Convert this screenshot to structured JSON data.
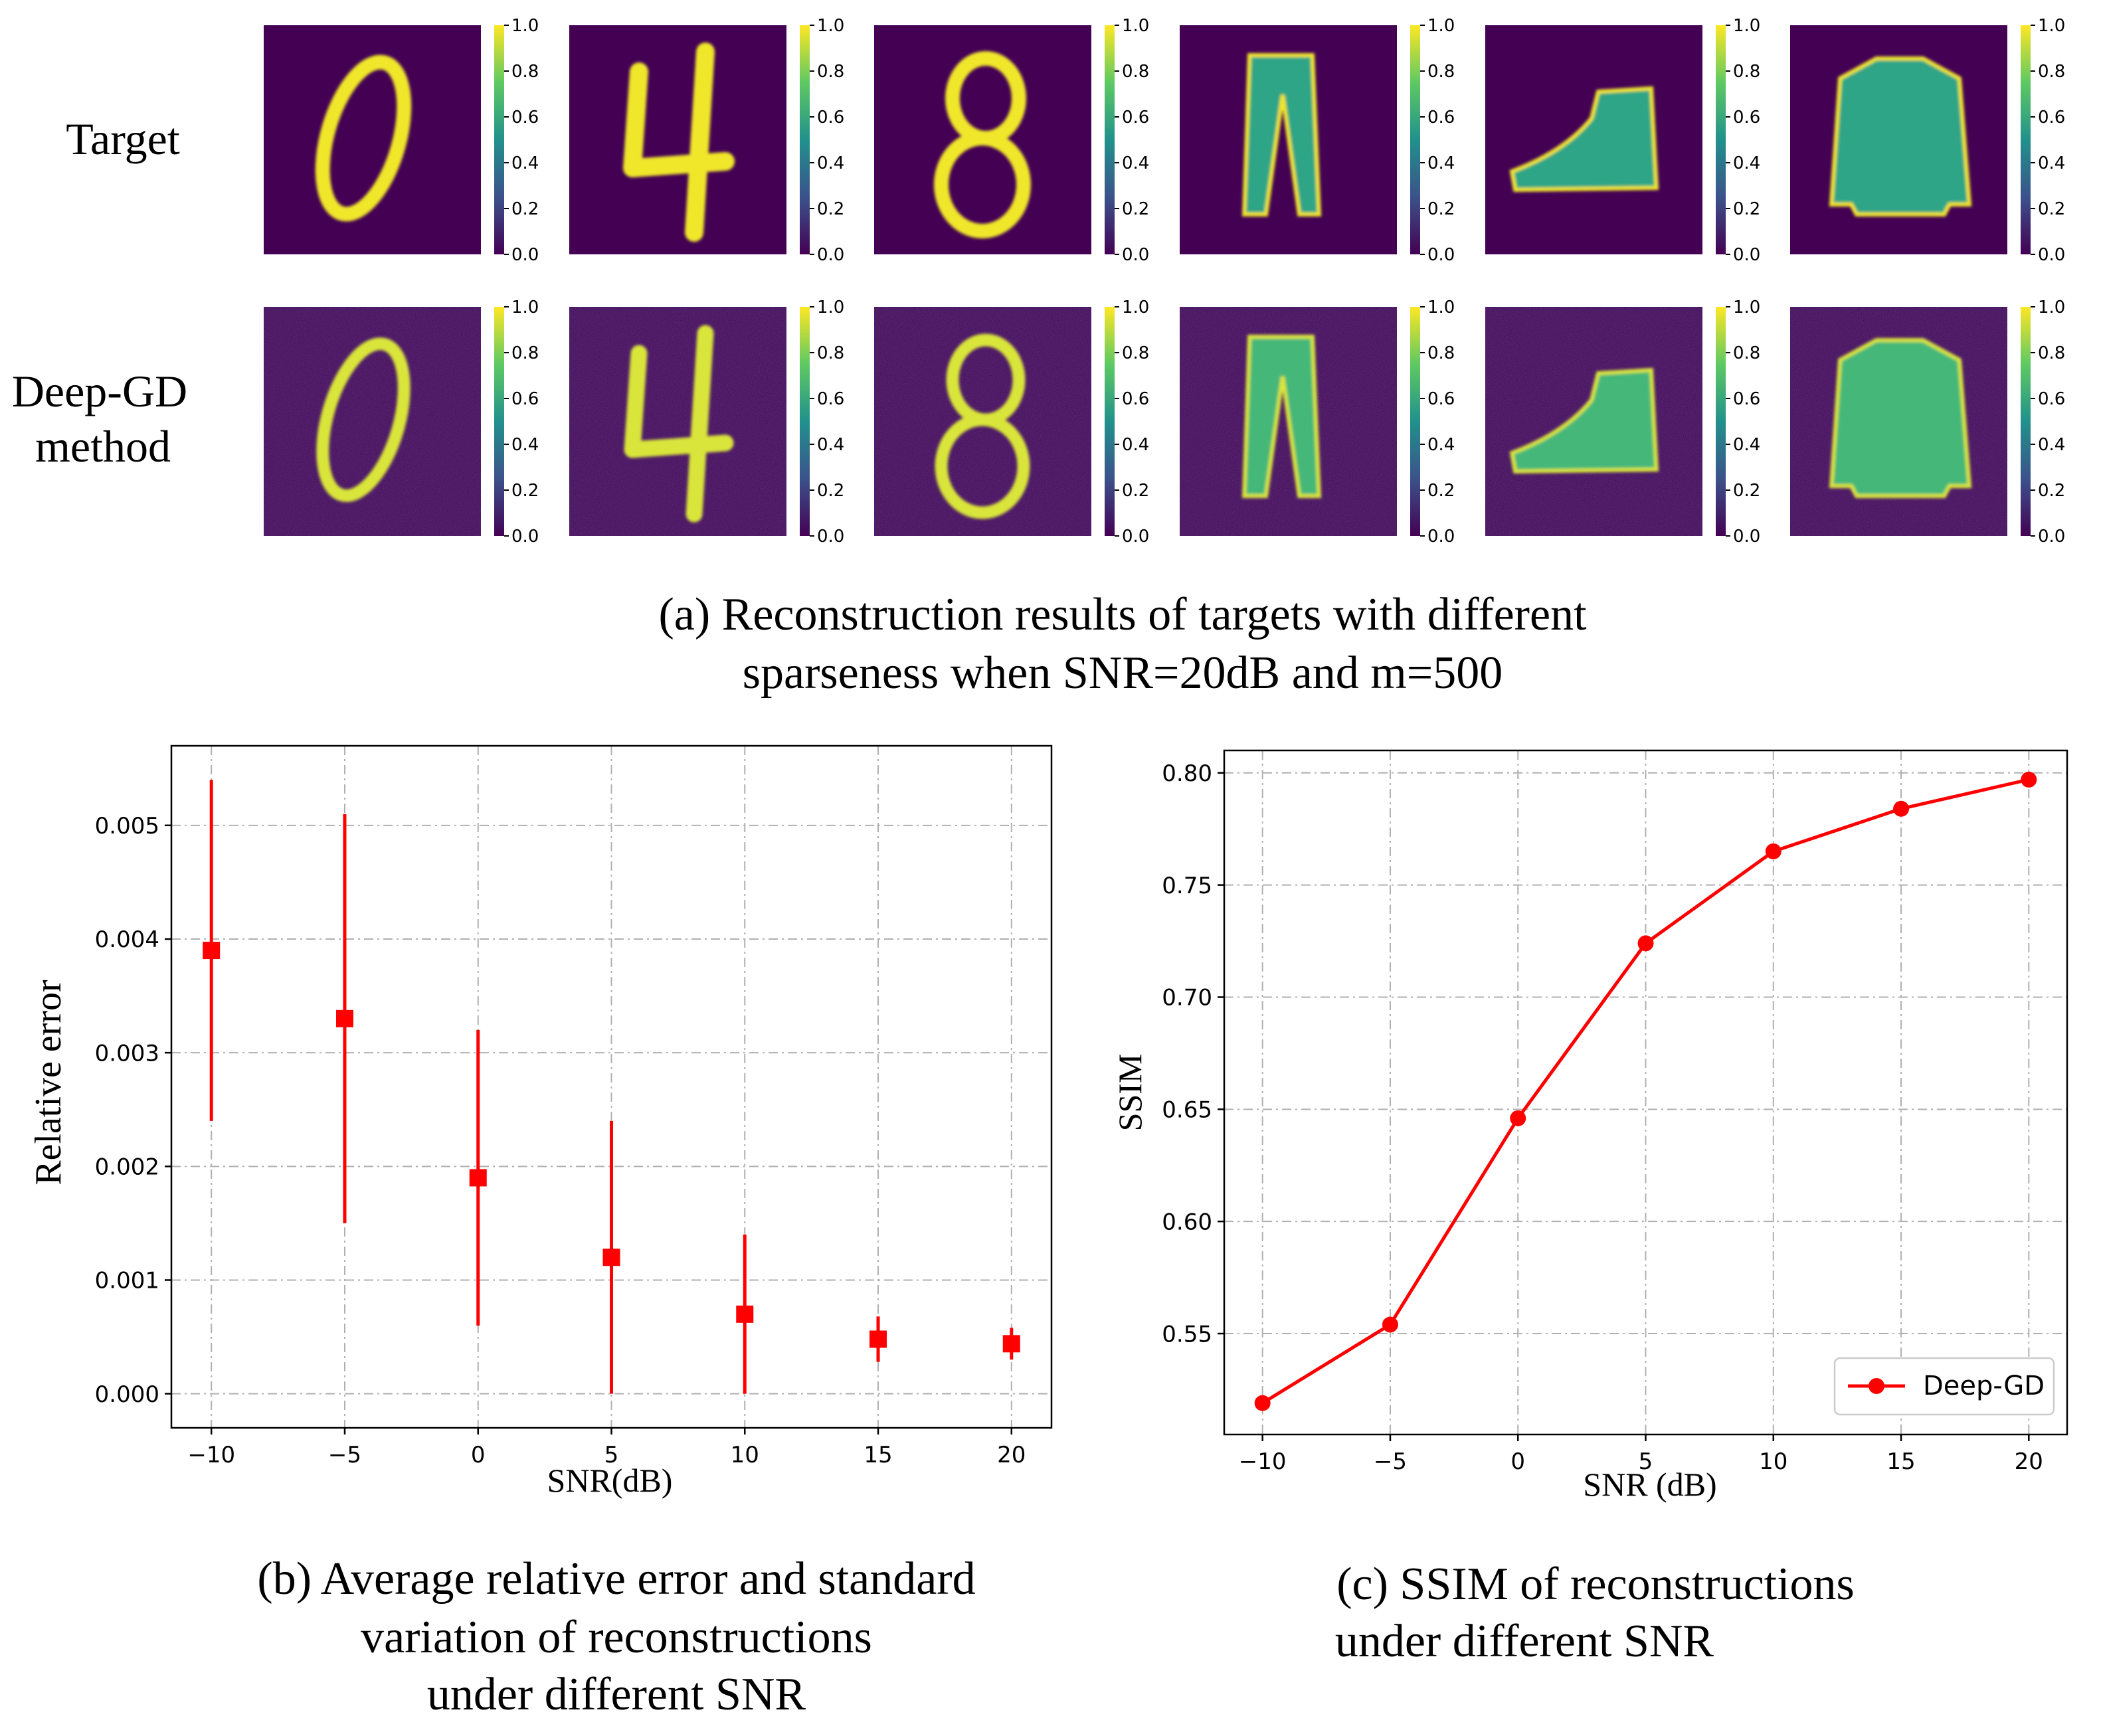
{
  "panel_a": {
    "row_labels": {
      "target": "Target",
      "deep_gd_line1": "Deep-GD",
      "deep_gd_line2": "method"
    },
    "tiles": [
      {
        "row": "target",
        "content": "digit-0"
      },
      {
        "row": "target",
        "content": "digit-4"
      },
      {
        "row": "target",
        "content": "digit-8"
      },
      {
        "row": "target",
        "content": "trousers"
      },
      {
        "row": "target",
        "content": "ankle-boot"
      },
      {
        "row": "target",
        "content": "pullover"
      },
      {
        "row": "deep-gd",
        "content": "digit-0"
      },
      {
        "row": "deep-gd",
        "content": "digit-4"
      },
      {
        "row": "deep-gd",
        "content": "digit-8"
      },
      {
        "row": "deep-gd",
        "content": "trousers"
      },
      {
        "row": "deep-gd",
        "content": "ankle-boot"
      },
      {
        "row": "deep-gd",
        "content": "pullover"
      }
    ],
    "colorbar_ticks": [
      "0.0",
      "0.2",
      "0.4",
      "0.6",
      "0.8",
      "1.0"
    ],
    "colormap": [
      "#440154",
      "#3b528b",
      "#21918c",
      "#5ec962",
      "#fde725"
    ],
    "caption_line1": "(a) Reconstruction results of targets with different",
    "caption_line2": "sparseness when SNR=20dB and m=500"
  },
  "chart_data": [
    {
      "type": "scatter",
      "id": "relative-error-chart",
      "title": "",
      "xlabel": "SNR(dB)",
      "ylabel": "Relative error",
      "x": [
        -10,
        -5,
        0,
        5,
        10,
        15,
        20
      ],
      "series": [
        {
          "name": "Relative error",
          "marker": "square",
          "color": "#ff0000",
          "values": [
            0.0039,
            0.0033,
            0.0019,
            0.0012,
            0.0007,
            0.00048,
            0.00044
          ],
          "error": [
            0.0015,
            0.0018,
            0.0013,
            0.0012,
            0.0007,
            0.0002,
            0.00014
          ]
        }
      ],
      "xlim": [
        -11.5,
        21.5
      ],
      "ylim": [
        -0.0003,
        0.0057
      ],
      "xticks": [
        -10,
        -5,
        0,
        5,
        10,
        15,
        20
      ],
      "xtick_labels": [
        "−10",
        "−5",
        "0",
        "5",
        "10",
        "15",
        "20"
      ],
      "yticks": [
        0,
        0.001,
        0.002,
        0.003,
        0.004,
        0.005
      ],
      "ytick_labels": [
        "0.000",
        "0.001",
        "0.002",
        "0.003",
        "0.004",
        "0.005"
      ],
      "grid": true,
      "caption_line1": "(b) Average relative error and standard",
      "caption_line2": "variation of reconstructions",
      "caption_line3": "under different SNR"
    },
    {
      "type": "line",
      "id": "ssim-chart",
      "title": "",
      "xlabel": "SNR (dB)",
      "ylabel": "SSIM",
      "x": [
        -10,
        -5,
        0,
        5,
        10,
        15,
        20
      ],
      "series": [
        {
          "name": "Deep-GD",
          "marker": "circle",
          "color": "#ff0000",
          "values": [
            0.519,
            0.554,
            0.646,
            0.724,
            0.765,
            0.784,
            0.797
          ]
        }
      ],
      "xlim": [
        -11.5,
        21.5
      ],
      "ylim": [
        0.505,
        0.81
      ],
      "xticks": [
        -10,
        -5,
        0,
        5,
        10,
        15,
        20
      ],
      "xtick_labels": [
        "−10",
        "−5",
        "0",
        "5",
        "10",
        "15",
        "20"
      ],
      "yticks": [
        0.55,
        0.6,
        0.65,
        0.7,
        0.75,
        0.8
      ],
      "ytick_labels": [
        "0.55",
        "0.60",
        "0.65",
        "0.70",
        "0.75",
        "0.80"
      ],
      "grid": true,
      "legend_position": "lower-right",
      "caption_line1": "(c) SSIM of reconstructions",
      "caption_line2": "under different SNR"
    }
  ]
}
